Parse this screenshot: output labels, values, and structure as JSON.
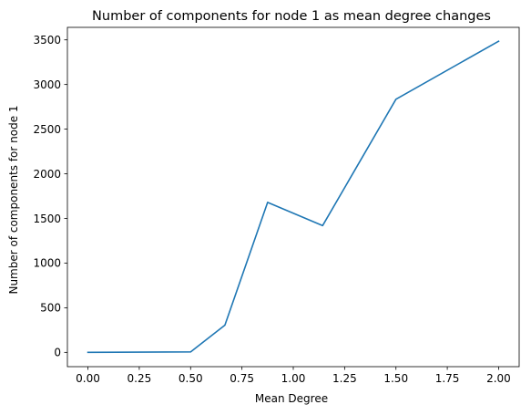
{
  "chart_data": {
    "type": "line",
    "title": "Number of components for node 1 as mean degree changes",
    "xlabel": "Mean Degree",
    "ylabel": "Number of components for node 1",
    "xlim": [
      -0.1,
      2.1
    ],
    "ylim": [
      -160,
      3640
    ],
    "xticks": [
      0.0,
      0.25,
      0.5,
      0.75,
      1.0,
      1.25,
      1.5,
      1.75,
      2.0
    ],
    "xtick_labels": [
      "0.00",
      "0.25",
      "0.50",
      "0.75",
      "1.00",
      "1.25",
      "1.50",
      "1.75",
      "2.00"
    ],
    "yticks": [
      0,
      500,
      1000,
      1500,
      2000,
      2500,
      3000,
      3500
    ],
    "ytick_labels": [
      "0",
      "500",
      "1000",
      "1500",
      "2000",
      "2500",
      "3000",
      "3500"
    ],
    "grid": false,
    "series": [
      {
        "color": "#1f77b4",
        "x": [
          0.0,
          0.5,
          0.667,
          0.875,
          1.143,
          1.5,
          2.0
        ],
        "y": [
          0,
          5,
          305,
          1680,
          1420,
          2835,
          3485
        ]
      }
    ]
  }
}
